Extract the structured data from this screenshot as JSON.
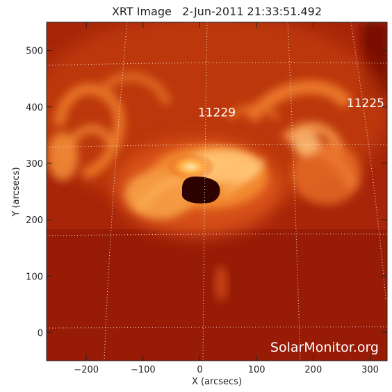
{
  "title": "XRT Image   2-Jun-2011 21:33:51.492",
  "axes": {
    "xlabel": "X (arcsecs)",
    "ylabel": "Y (arcsecs)",
    "xlim": [
      -270,
      330
    ],
    "ylim": [
      -50,
      550
    ],
    "xticks": [
      -200,
      -100,
      0,
      100,
      200,
      300
    ],
    "yticks": [
      0,
      100,
      200,
      300,
      400,
      500
    ]
  },
  "regions": [
    {
      "label": "11229",
      "x": 30,
      "y": 383
    },
    {
      "label": "11225",
      "x": 292,
      "y": 400
    }
  ],
  "watermark": "SolarMonitor.org",
  "colors": {
    "background": "#ffffff",
    "axis": "#222222",
    "image_dark": "#8a1205",
    "image_mid": "#c63a0e",
    "image_bright": "#ff9d33",
    "image_peak": "#ffd28a",
    "sunspot": "#300000",
    "grid": "#ffffff",
    "label": "#ffffff"
  }
}
